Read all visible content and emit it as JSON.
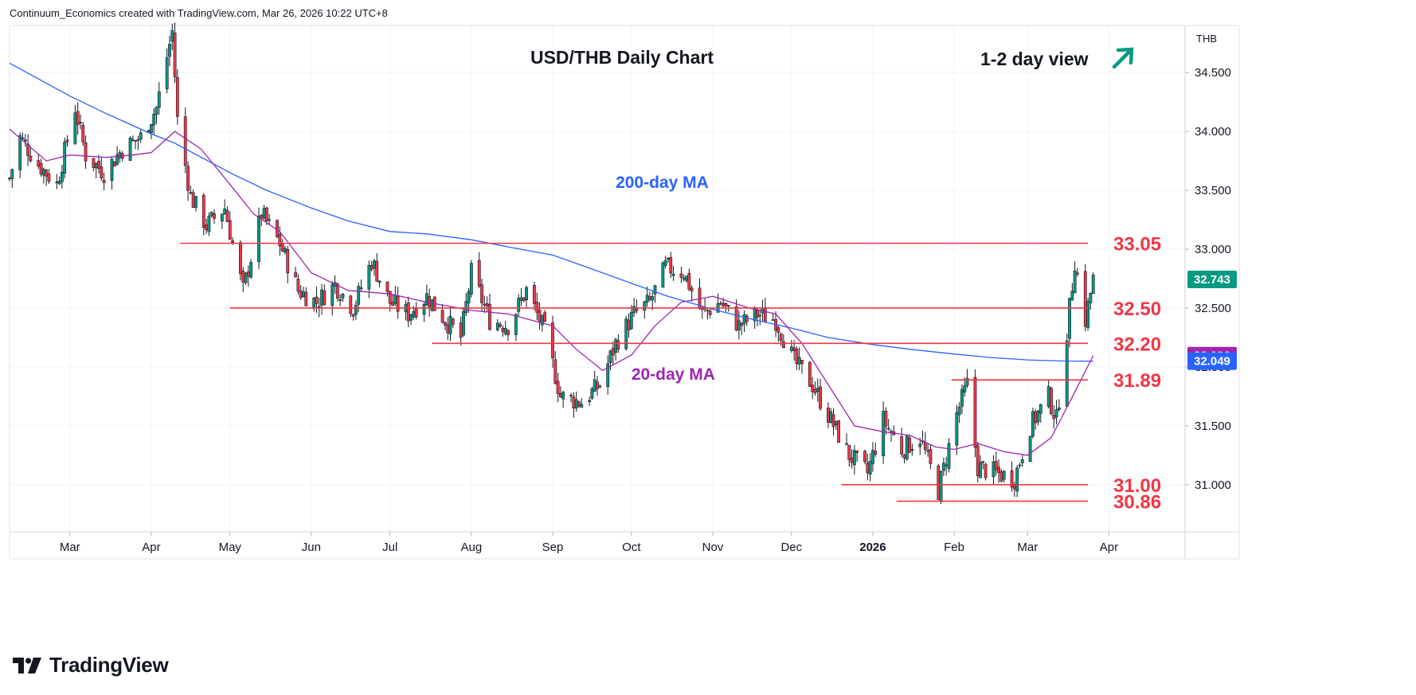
{
  "header": {
    "credit": "Continuum_Economics created with TradingView.com, Mar 26, 2026 10:22 UTC+8"
  },
  "brand": {
    "name": "TradingView"
  },
  "chart_data": {
    "type": "candlestick",
    "title": "USD/THB Daily Chart",
    "view_label": "1-2 day view",
    "view_direction": "up",
    "symbol_currency": "THB",
    "ylim": [
      30.6,
      34.9
    ],
    "y_ticks": [
      31.0,
      31.5,
      32.0,
      32.5,
      33.0,
      33.5,
      34.0,
      34.5
    ],
    "y_tick_labels": [
      "31.000",
      "31.500",
      "32.000",
      "32.500",
      "33.000",
      "33.500",
      "34.000",
      "34.500"
    ],
    "x_labels": [
      {
        "label": "Mar",
        "date": "2025-03-01"
      },
      {
        "label": "Apr",
        "date": "2025-04-01"
      },
      {
        "label": "May",
        "date": "2025-05-01"
      },
      {
        "label": "Jun",
        "date": "2025-06-01"
      },
      {
        "label": "Jul",
        "date": "2025-07-01"
      },
      {
        "label": "Aug",
        "date": "2025-08-01"
      },
      {
        "label": "Sep",
        "date": "2025-09-01"
      },
      {
        "label": "Oct",
        "date": "2025-10-01"
      },
      {
        "label": "Nov",
        "date": "2025-11-01"
      },
      {
        "label": "Dec",
        "date": "2025-12-01"
      },
      {
        "label": "2026",
        "date": "2026-01-01"
      },
      {
        "label": "Feb",
        "date": "2026-02-01"
      },
      {
        "label": "Mar",
        "date": "2026-03-01"
      },
      {
        "label": "Apr",
        "date": "2026-04-01"
      }
    ],
    "date_range": [
      "2025-02-06",
      "2026-04-30"
    ],
    "grid": true,
    "key_levels": [
      {
        "value": 33.05,
        "label": "33.05",
        "start_date": "2025-04-12",
        "color": "#f23645"
      },
      {
        "value": 32.5,
        "label": "32.50",
        "start_date": "2025-05-01",
        "color": "#f23645"
      },
      {
        "value": 32.2,
        "label": "32.20",
        "start_date": "2025-07-17",
        "color": "#f23645"
      },
      {
        "value": 31.89,
        "label": "31.89",
        "start_date": "2026-01-31",
        "color": "#f23645"
      },
      {
        "value": 31.0,
        "label": "31.00",
        "start_date": "2025-12-20",
        "color": "#f23645"
      },
      {
        "value": 30.86,
        "label": "30.86",
        "start_date": "2026-01-10",
        "color": "#f23645"
      }
    ],
    "price_badges": [
      {
        "value": 32.743,
        "label": "32.743",
        "color": "#089981"
      },
      {
        "value": 32.096,
        "label": "32.096",
        "color": "#9c27b0"
      },
      {
        "value": 32.049,
        "label": "32.049",
        "color": "#2962ff"
      }
    ],
    "series": [
      {
        "name": "200-day MA",
        "color": "#2962ff",
        "label_at": {
          "date": "2025-09-25",
          "value": 33.52
        },
        "points": [
          [
            "2025-02-06",
            34.58
          ],
          [
            "2025-03-01",
            34.3
          ],
          [
            "2025-03-15",
            34.15
          ],
          [
            "2025-04-01",
            33.98
          ],
          [
            "2025-04-10",
            33.9
          ],
          [
            "2025-05-01",
            33.65
          ],
          [
            "2025-05-15",
            33.5
          ],
          [
            "2025-06-01",
            33.35
          ],
          [
            "2025-06-15",
            33.24
          ],
          [
            "2025-07-01",
            33.15
          ],
          [
            "2025-07-15",
            33.13
          ],
          [
            "2025-08-01",
            33.08
          ],
          [
            "2025-08-15",
            33.02
          ],
          [
            "2025-09-01",
            32.95
          ],
          [
            "2025-09-15",
            32.84
          ],
          [
            "2025-10-01",
            32.71
          ],
          [
            "2025-10-15",
            32.6
          ],
          [
            "2025-11-01",
            32.49
          ],
          [
            "2025-11-15",
            32.41
          ],
          [
            "2025-12-01",
            32.33
          ],
          [
            "2025-12-15",
            32.25
          ],
          [
            "2026-01-01",
            32.19
          ],
          [
            "2026-01-15",
            32.15
          ],
          [
            "2026-02-01",
            32.11
          ],
          [
            "2026-02-15",
            32.08
          ],
          [
            "2026-03-01",
            32.06
          ],
          [
            "2026-03-15",
            32.05
          ],
          [
            "2026-03-26",
            32.049
          ]
        ]
      },
      {
        "name": "20-day MA",
        "color": "#9c27b0",
        "label_at": {
          "date": "2025-10-01",
          "value": 31.89
        },
        "points": [
          [
            "2025-02-06",
            34.02
          ],
          [
            "2025-02-20",
            33.75
          ],
          [
            "2025-03-01",
            33.8
          ],
          [
            "2025-03-15",
            33.78
          ],
          [
            "2025-03-25",
            33.8
          ],
          [
            "2025-04-01",
            33.82
          ],
          [
            "2025-04-10",
            34.0
          ],
          [
            "2025-04-20",
            33.85
          ],
          [
            "2025-05-01",
            33.55
          ],
          [
            "2025-05-10",
            33.3
          ],
          [
            "2025-05-20",
            33.15
          ],
          [
            "2025-06-01",
            32.8
          ],
          [
            "2025-06-15",
            32.65
          ],
          [
            "2025-07-01",
            32.62
          ],
          [
            "2025-07-15",
            32.55
          ],
          [
            "2025-08-01",
            32.48
          ],
          [
            "2025-08-15",
            32.45
          ],
          [
            "2025-09-01",
            32.35
          ],
          [
            "2025-09-10",
            32.15
          ],
          [
            "2025-09-20",
            31.97
          ],
          [
            "2025-10-01",
            32.1
          ],
          [
            "2025-10-10",
            32.35
          ],
          [
            "2025-10-20",
            32.55
          ],
          [
            "2025-11-01",
            32.6
          ],
          [
            "2025-11-15",
            32.5
          ],
          [
            "2025-11-25",
            32.45
          ],
          [
            "2025-12-05",
            32.2
          ],
          [
            "2025-12-15",
            31.85
          ],
          [
            "2025-12-25",
            31.5
          ],
          [
            "2026-01-05",
            31.45
          ],
          [
            "2026-01-15",
            31.42
          ],
          [
            "2026-01-25",
            31.32
          ],
          [
            "2026-02-01",
            31.3
          ],
          [
            "2026-02-10",
            31.35
          ],
          [
            "2026-02-20",
            31.28
          ],
          [
            "2026-03-01",
            31.25
          ],
          [
            "2026-03-10",
            31.4
          ],
          [
            "2026-03-17",
            31.7
          ],
          [
            "2026-03-26",
            32.096
          ]
        ]
      }
    ],
    "candles_note": "daily OHLC candles between the listed anchor closes",
    "price_path": [
      [
        "2025-02-06",
        33.6
      ],
      [
        "2025-02-10",
        33.95
      ],
      [
        "2025-02-17",
        33.72
      ],
      [
        "2025-02-24",
        33.55
      ],
      [
        "2025-03-03",
        34.2
      ],
      [
        "2025-03-07",
        33.8
      ],
      [
        "2025-03-14",
        33.65
      ],
      [
        "2025-03-21",
        33.85
      ],
      [
        "2025-03-28",
        33.95
      ],
      [
        "2025-04-03",
        34.2
      ],
      [
        "2025-04-09",
        34.85
      ],
      [
        "2025-04-11",
        34.1
      ],
      [
        "2025-04-16",
        33.45
      ],
      [
        "2025-04-22",
        33.2
      ],
      [
        "2025-04-29",
        33.35
      ],
      [
        "2025-05-06",
        32.65
      ],
      [
        "2025-05-13",
        33.3
      ],
      [
        "2025-05-20",
        33.05
      ],
      [
        "2025-05-27",
        32.65
      ],
      [
        "2025-06-03",
        32.55
      ],
      [
        "2025-06-10",
        32.7
      ],
      [
        "2025-06-17",
        32.5
      ],
      [
        "2025-06-24",
        32.9
      ],
      [
        "2025-07-01",
        32.55
      ],
      [
        "2025-07-08",
        32.45
      ],
      [
        "2025-07-15",
        32.6
      ],
      [
        "2025-07-22",
        32.4
      ],
      [
        "2025-07-28",
        32.25
      ],
      [
        "2025-08-01",
        32.8
      ],
      [
        "2025-08-08",
        32.4
      ],
      [
        "2025-08-15",
        32.35
      ],
      [
        "2025-08-22",
        32.65
      ],
      [
        "2025-08-29",
        32.3
      ],
      [
        "2025-09-04",
        31.75
      ],
      [
        "2025-09-12",
        31.7
      ],
      [
        "2025-09-19",
        31.85
      ],
      [
        "2025-09-25",
        32.2
      ],
      [
        "2025-10-02",
        32.45
      ],
      [
        "2025-10-08",
        32.55
      ],
      [
        "2025-10-14",
        32.85
      ],
      [
        "2025-10-21",
        32.8
      ],
      [
        "2025-10-28",
        32.45
      ],
      [
        "2025-11-04",
        32.55
      ],
      [
        "2025-11-11",
        32.35
      ],
      [
        "2025-11-18",
        32.45
      ],
      [
        "2025-11-25",
        32.4
      ],
      [
        "2025-12-02",
        32.05
      ],
      [
        "2025-12-09",
        31.85
      ],
      [
        "2025-12-16",
        31.55
      ],
      [
        "2025-12-23",
        31.25
      ],
      [
        "2025-12-30",
        31.1
      ],
      [
        "2026-01-05",
        31.55
      ],
      [
        "2026-01-12",
        31.3
      ],
      [
        "2026-01-19",
        31.4
      ],
      [
        "2026-01-26",
        30.95
      ],
      [
        "2026-02-02",
        31.6
      ],
      [
        "2026-02-06",
        31.85
      ],
      [
        "2026-02-10",
        31.15
      ],
      [
        "2026-02-17",
        31.1
      ],
      [
        "2026-02-24",
        31.05
      ],
      [
        "2026-03-02",
        31.5
      ],
      [
        "2026-03-09",
        31.75
      ],
      [
        "2026-03-12",
        31.55
      ],
      [
        "2026-03-16",
        32.3
      ],
      [
        "2026-03-19",
        32.9
      ],
      [
        "2026-03-23",
        32.4
      ],
      [
        "2026-03-26",
        32.743
      ]
    ]
  }
}
